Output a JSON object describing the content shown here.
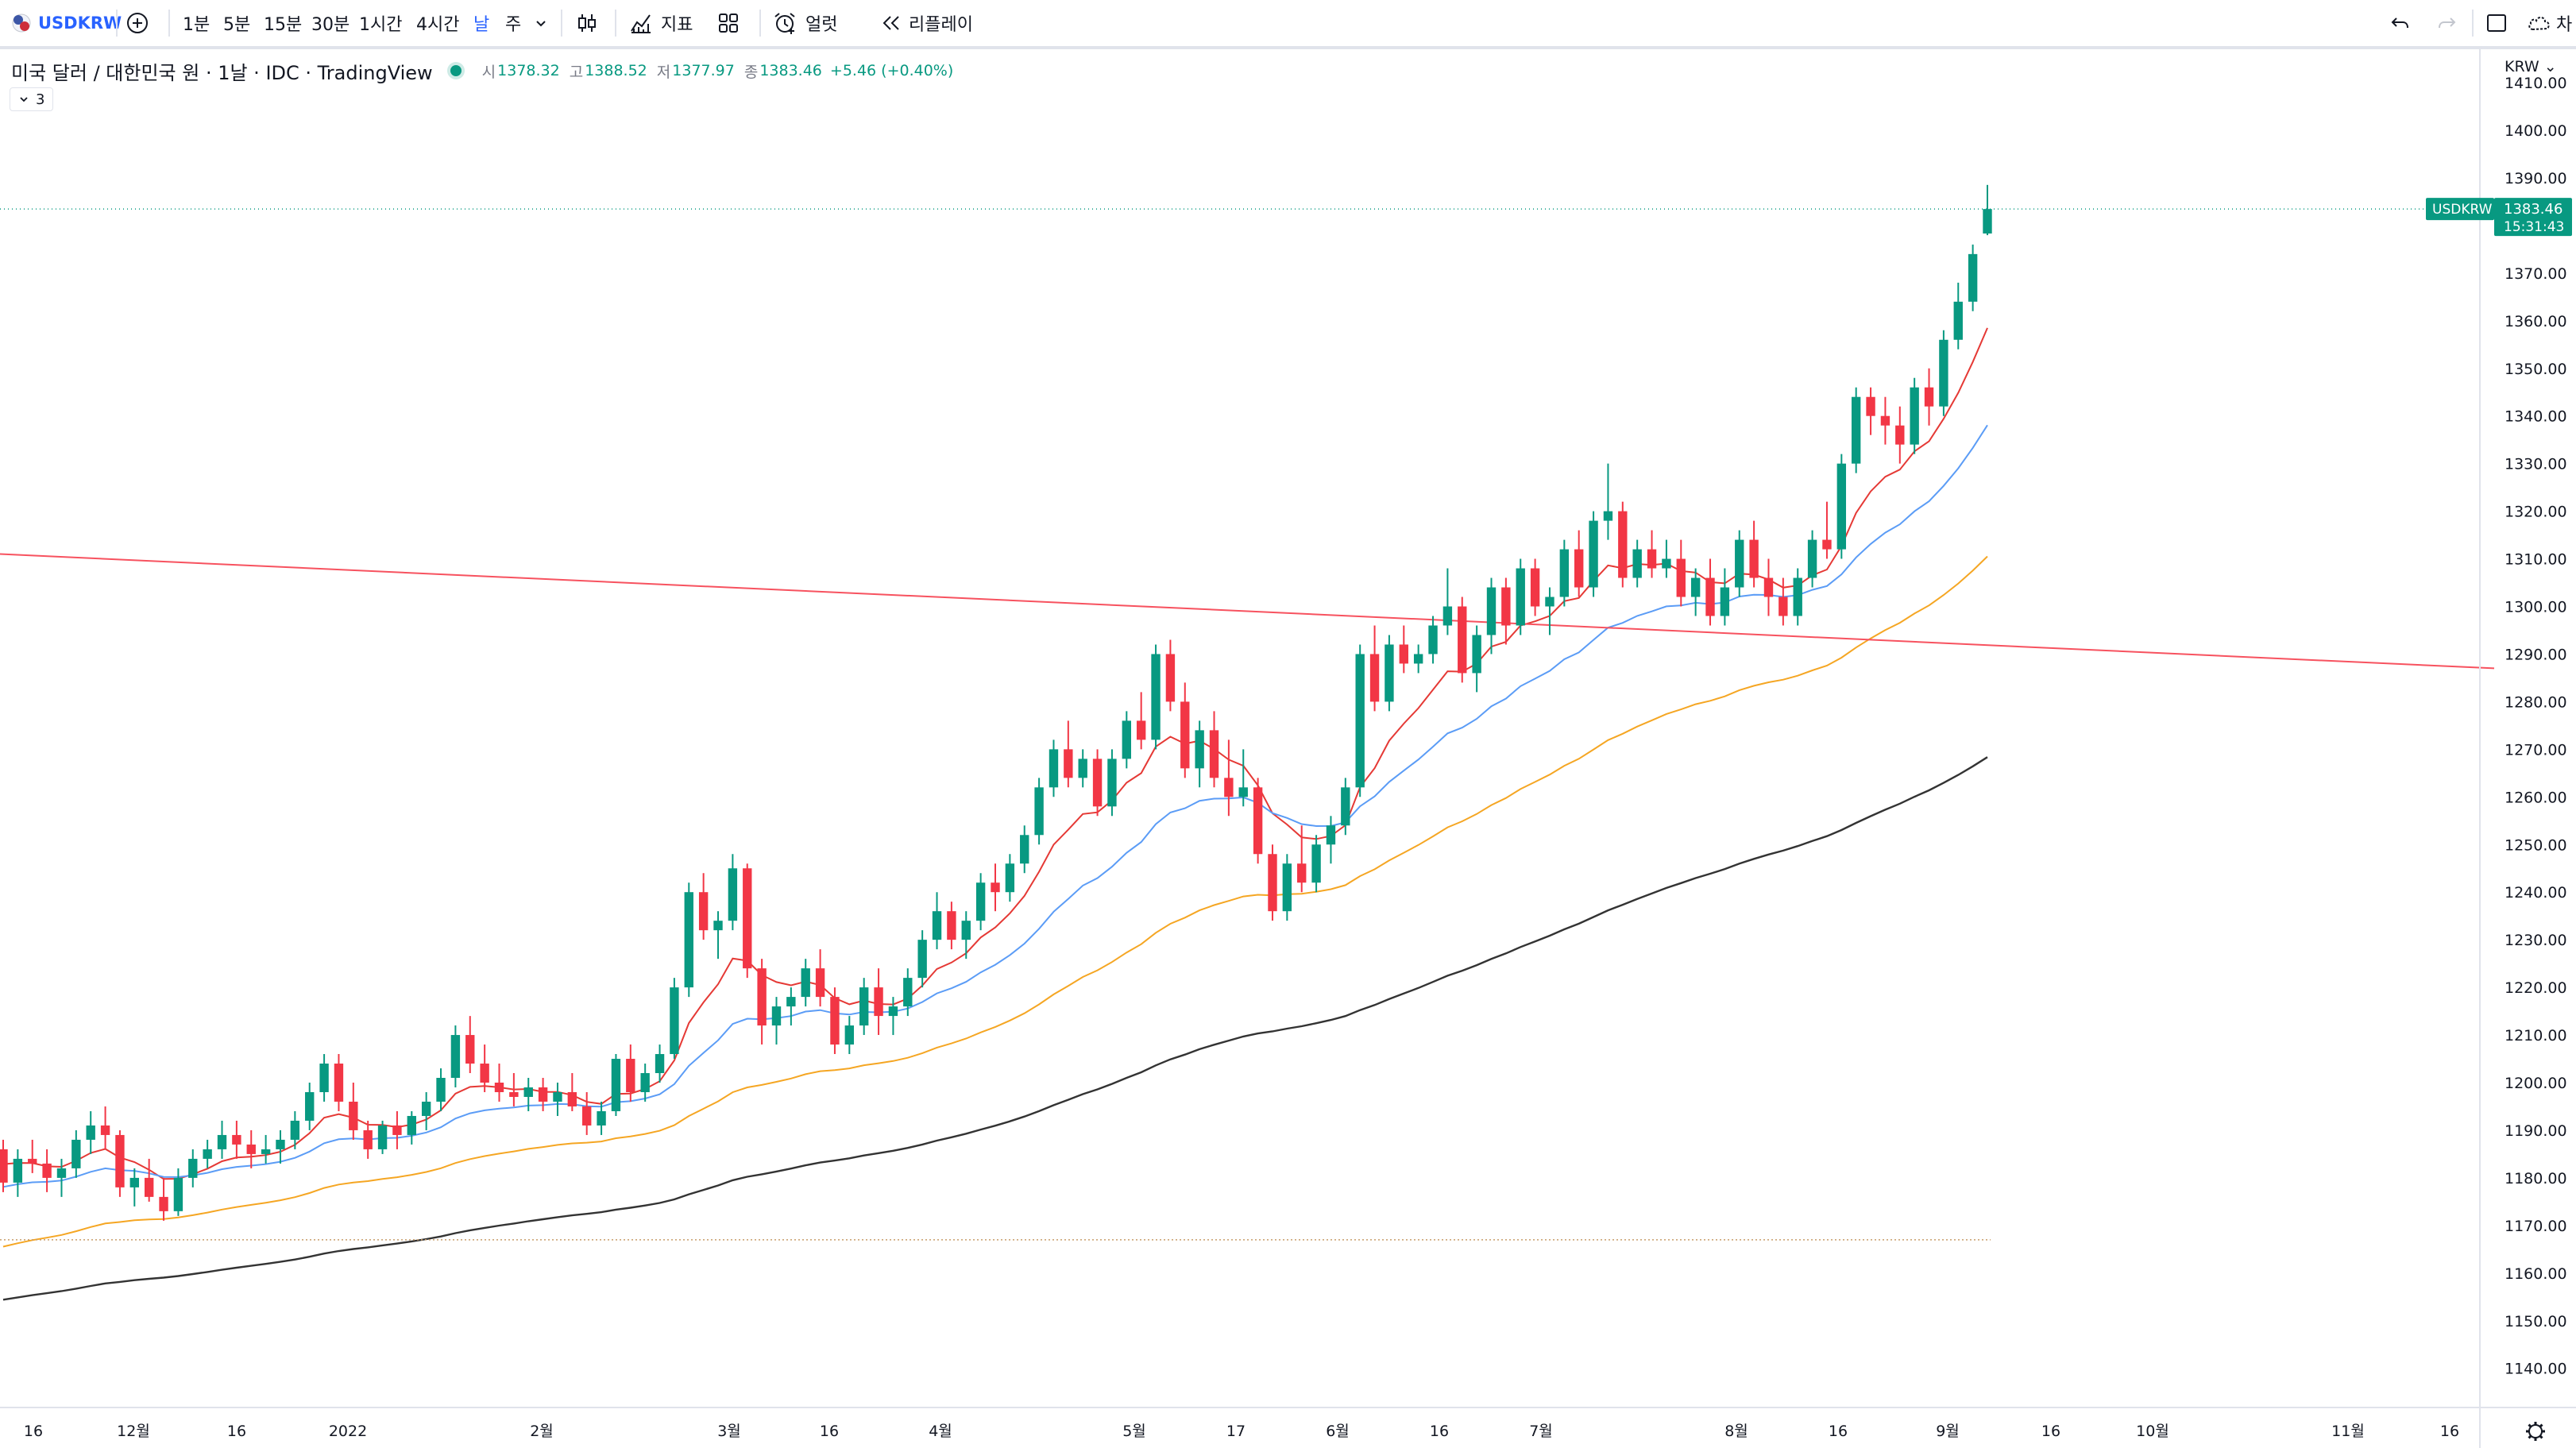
{
  "toolbar": {
    "symbol": "USDKRW",
    "intervals": [
      "1분",
      "5분",
      "15분",
      "30분",
      "1시간",
      "4시간",
      "날",
      "주"
    ],
    "active_interval": "날",
    "indicators_label": "지표",
    "alert_label": "얼럿",
    "replay_label": "리플레이",
    "right_cut_label": "차"
  },
  "legend": {
    "title": "미국 달러 / 대한민국 원 · 1날 · IDC · TradingView",
    "open_k": "시",
    "open_v": "1378.32",
    "high_k": "고",
    "high_v": "1388.52",
    "low_k": "저",
    "low_v": "1377.97",
    "close_k": "종",
    "close_v": "1383.46",
    "change": "+5.46 (+0.40%)",
    "indicator_count": "3"
  },
  "price_axis": {
    "currency": "KRW",
    "ticks": [
      "1410.00",
      "1400.00",
      "1390.00",
      "1370.00",
      "1360.00",
      "1350.00",
      "1340.00",
      "1330.00",
      "1320.00",
      "1310.00",
      "1300.00",
      "1290.00",
      "1280.00",
      "1270.00",
      "1260.00",
      "1250.00",
      "1240.00",
      "1230.00",
      "1220.00",
      "1210.00",
      "1200.00",
      "1190.00",
      "1180.00",
      "1170.00",
      "1160.00",
      "1150.00",
      "1140.00"
    ],
    "last_label": "USDKRW",
    "last_price": "1383.46",
    "countdown": "15:31:43"
  },
  "time_axis": {
    "labels": [
      "16",
      "12월",
      "16",
      "2022",
      "2월",
      "3월",
      "16",
      "4월",
      "5월",
      "17",
      "6월",
      "16",
      "7월",
      "8월",
      "16",
      "9월",
      "16",
      "10월",
      "11월",
      "16"
    ]
  },
  "colors": {
    "up": "#089981",
    "down": "#f23645",
    "ma_fast": "#e53935",
    "ma_mid": "#5b9cf6",
    "ma_slow": "#f5a623",
    "ma_long": "#333333",
    "trendline": "#f7525f"
  },
  "chart_data": {
    "type": "candlestick",
    "symbol": "USDKRW",
    "ohlc": [
      [
        1186,
        1188,
        1177,
        1179
      ],
      [
        1179,
        1186,
        1176,
        1184
      ],
      [
        1184,
        1188,
        1181,
        1183
      ],
      [
        1183,
        1186,
        1177,
        1180
      ],
      [
        1180,
        1184,
        1176,
        1182
      ],
      [
        1182,
        1190,
        1180,
        1188
      ],
      [
        1188,
        1194,
        1185,
        1191
      ],
      [
        1191,
        1195,
        1186,
        1189
      ],
      [
        1189,
        1190,
        1176,
        1178
      ],
      [
        1178,
        1182,
        1174,
        1180
      ],
      [
        1180,
        1184,
        1175,
        1176
      ],
      [
        1176,
        1180,
        1171,
        1173
      ],
      [
        1173,
        1182,
        1172,
        1180
      ],
      [
        1180,
        1186,
        1178,
        1184
      ],
      [
        1184,
        1188,
        1182,
        1186
      ],
      [
        1186,
        1192,
        1184,
        1189
      ],
      [
        1189,
        1192,
        1184,
        1187
      ],
      [
        1187,
        1190,
        1182,
        1185
      ],
      [
        1185,
        1189,
        1183,
        1186
      ],
      [
        1186,
        1190,
        1183,
        1188
      ],
      [
        1188,
        1194,
        1186,
        1192
      ],
      [
        1192,
        1200,
        1190,
        1198
      ],
      [
        1198,
        1206,
        1196,
        1204
      ],
      [
        1204,
        1206,
        1194,
        1196
      ],
      [
        1196,
        1200,
        1188,
        1190
      ],
      [
        1190,
        1192,
        1184,
        1186
      ],
      [
        1186,
        1192,
        1185,
        1191
      ],
      [
        1191,
        1194,
        1186,
        1189
      ],
      [
        1189,
        1194,
        1187,
        1193
      ],
      [
        1193,
        1198,
        1190,
        1196
      ],
      [
        1196,
        1203,
        1194,
        1201
      ],
      [
        1201,
        1212,
        1199,
        1210
      ],
      [
        1210,
        1214,
        1202,
        1204
      ],
      [
        1204,
        1208,
        1198,
        1200
      ],
      [
        1200,
        1204,
        1196,
        1198
      ],
      [
        1198,
        1202,
        1195,
        1197
      ],
      [
        1197,
        1201,
        1194,
        1199
      ],
      [
        1199,
        1201,
        1194,
        1196
      ],
      [
        1196,
        1200,
        1193,
        1198
      ],
      [
        1198,
        1202,
        1194,
        1195
      ],
      [
        1195,
        1198,
        1189,
        1191
      ],
      [
        1191,
        1196,
        1189,
        1194
      ],
      [
        1194,
        1206,
        1193,
        1205
      ],
      [
        1205,
        1208,
        1196,
        1198
      ],
      [
        1198,
        1204,
        1196,
        1202
      ],
      [
        1202,
        1208,
        1200,
        1206
      ],
      [
        1206,
        1222,
        1205,
        1220
      ],
      [
        1220,
        1242,
        1218,
        1240
      ],
      [
        1240,
        1244,
        1230,
        1232
      ],
      [
        1232,
        1236,
        1226,
        1234
      ],
      [
        1234,
        1248,
        1232,
        1245
      ],
      [
        1245,
        1246,
        1222,
        1224
      ],
      [
        1224,
        1226,
        1208,
        1212
      ],
      [
        1212,
        1218,
        1208,
        1216
      ],
      [
        1216,
        1220,
        1212,
        1218
      ],
      [
        1218,
        1226,
        1216,
        1224
      ],
      [
        1224,
        1228,
        1216,
        1218
      ],
      [
        1218,
        1220,
        1206,
        1208
      ],
      [
        1208,
        1214,
        1206,
        1212
      ],
      [
        1212,
        1222,
        1210,
        1220
      ],
      [
        1220,
        1224,
        1210,
        1214
      ],
      [
        1214,
        1218,
        1210,
        1216
      ],
      [
        1216,
        1224,
        1214,
        1222
      ],
      [
        1222,
        1232,
        1220,
        1230
      ],
      [
        1230,
        1240,
        1228,
        1236
      ],
      [
        1236,
        1238,
        1228,
        1230
      ],
      [
        1230,
        1236,
        1226,
        1234
      ],
      [
        1234,
        1244,
        1232,
        1242
      ],
      [
        1242,
        1246,
        1236,
        1240
      ],
      [
        1240,
        1248,
        1238,
        1246
      ],
      [
        1246,
        1254,
        1244,
        1252
      ],
      [
        1252,
        1264,
        1250,
        1262
      ],
      [
        1262,
        1272,
        1260,
        1270
      ],
      [
        1270,
        1276,
        1262,
        1264
      ],
      [
        1264,
        1270,
        1262,
        1268
      ],
      [
        1268,
        1270,
        1256,
        1258
      ],
      [
        1258,
        1270,
        1256,
        1268
      ],
      [
        1268,
        1278,
        1266,
        1276
      ],
      [
        1276,
        1282,
        1270,
        1272
      ],
      [
        1272,
        1292,
        1270,
        1290
      ],
      [
        1290,
        1293,
        1278,
        1280
      ],
      [
        1280,
        1284,
        1264,
        1266
      ],
      [
        1266,
        1276,
        1262,
        1274
      ],
      [
        1274,
        1278,
        1262,
        1264
      ],
      [
        1264,
        1272,
        1256,
        1260
      ],
      [
        1260,
        1270,
        1258,
        1262
      ],
      [
        1262,
        1264,
        1246,
        1248
      ],
      [
        1248,
        1250,
        1234,
        1236
      ],
      [
        1236,
        1248,
        1234,
        1246
      ],
      [
        1246,
        1254,
        1240,
        1242
      ],
      [
        1242,
        1252,
        1240,
        1250
      ],
      [
        1250,
        1256,
        1246,
        1254
      ],
      [
        1254,
        1264,
        1252,
        1262
      ],
      [
        1262,
        1292,
        1260,
        1290
      ],
      [
        1290,
        1296,
        1278,
        1280
      ],
      [
        1280,
        1294,
        1278,
        1292
      ],
      [
        1292,
        1296,
        1286,
        1288
      ],
      [
        1288,
        1292,
        1286,
        1290
      ],
      [
        1290,
        1298,
        1288,
        1296
      ],
      [
        1296,
        1308,
        1294,
        1300
      ],
      [
        1300,
        1302,
        1284,
        1286
      ],
      [
        1286,
        1296,
        1282,
        1294
      ],
      [
        1294,
        1306,
        1290,
        1304
      ],
      [
        1304,
        1306,
        1292,
        1296
      ],
      [
        1296,
        1310,
        1294,
        1308
      ],
      [
        1308,
        1310,
        1298,
        1300
      ],
      [
        1300,
        1304,
        1294,
        1302
      ],
      [
        1302,
        1314,
        1300,
        1312
      ],
      [
        1312,
        1316,
        1302,
        1304
      ],
      [
        1304,
        1320,
        1302,
        1318
      ],
      [
        1318,
        1330,
        1314,
        1320
      ],
      [
        1320,
        1322,
        1304,
        1306
      ],
      [
        1306,
        1314,
        1304,
        1312
      ],
      [
        1312,
        1316,
        1306,
        1308
      ],
      [
        1308,
        1314,
        1306,
        1310
      ],
      [
        1310,
        1314,
        1300,
        1302
      ],
      [
        1302,
        1308,
        1298,
        1306
      ],
      [
        1306,
        1310,
        1296,
        1298
      ],
      [
        1298,
        1308,
        1296,
        1304
      ],
      [
        1304,
        1316,
        1302,
        1314
      ],
      [
        1314,
        1318,
        1304,
        1306
      ],
      [
        1306,
        1310,
        1298,
        1302
      ],
      [
        1302,
        1306,
        1296,
        1298
      ],
      [
        1298,
        1308,
        1296,
        1306
      ],
      [
        1306,
        1316,
        1304,
        1314
      ],
      [
        1314,
        1322,
        1310,
        1312
      ],
      [
        1312,
        1332,
        1310,
        1330
      ],
      [
        1330,
        1346,
        1328,
        1344
      ],
      [
        1344,
        1346,
        1336,
        1340
      ],
      [
        1340,
        1344,
        1334,
        1338
      ],
      [
        1338,
        1342,
        1330,
        1334
      ],
      [
        1334,
        1348,
        1332,
        1346
      ],
      [
        1346,
        1350,
        1338,
        1342
      ],
      [
        1342,
        1358,
        1340,
        1356
      ],
      [
        1356,
        1368,
        1354,
        1364
      ],
      [
        1364,
        1376,
        1362,
        1374
      ],
      [
        1378.32,
        1388.52,
        1377.97,
        1383.46
      ]
    ]
  }
}
